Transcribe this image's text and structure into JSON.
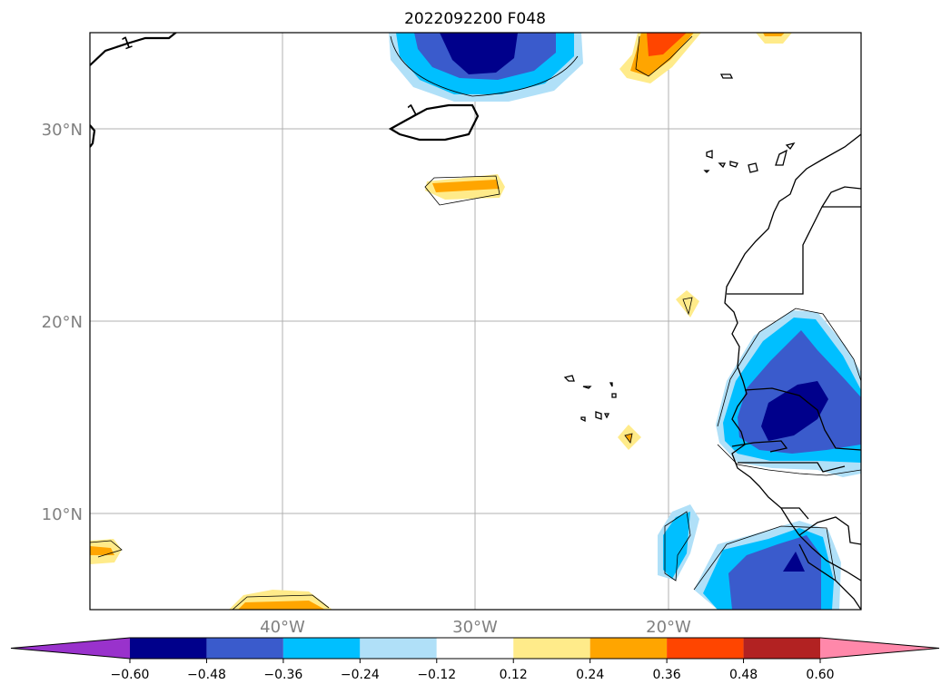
{
  "title": "2022092200 F048",
  "map": {
    "lat_range": [
      5,
      35
    ],
    "lon_range": [
      -50,
      -10
    ],
    "lat_labels": [
      "30°N",
      "20°N",
      "10°N"
    ],
    "lon_labels": [
      "40°W",
      "30°W",
      "20°W"
    ],
    "grid": true,
    "contour_label": "1"
  },
  "colorbar": {
    "ticks": [
      "−0.60",
      "−0.48",
      "−0.36",
      "−0.24",
      "−0.12",
      "0.12",
      "0.24",
      "0.36",
      "0.48",
      "0.60"
    ],
    "colors": [
      "#9932cc",
      "#00008b",
      "#3a5bcc",
      "#00bfff",
      "#b0e0f8",
      "#ffffff",
      "#ffeb8a",
      "#ffa500",
      "#ff4500",
      "#b22222",
      "#ff88aa"
    ]
  }
}
